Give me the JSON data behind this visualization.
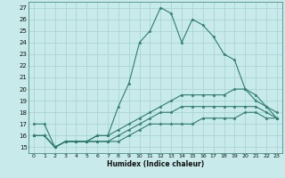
{
  "background_color": "#c8eaea",
  "grid_color": "#aad4d4",
  "line_color": "#2e7d6e",
  "xlabel": "Humidex (Indice chaleur)",
  "xlim": [
    -0.5,
    23.5
  ],
  "ylim": [
    14.5,
    27.5
  ],
  "yticks": [
    15,
    16,
    17,
    18,
    19,
    20,
    21,
    22,
    23,
    24,
    25,
    26,
    27
  ],
  "xticks": [
    0,
    1,
    2,
    3,
    4,
    5,
    6,
    7,
    8,
    9,
    10,
    11,
    12,
    13,
    14,
    15,
    16,
    17,
    18,
    19,
    20,
    21,
    22,
    23
  ],
  "series": [
    {
      "x": [
        0,
        1,
        2,
        3,
        4,
        5,
        6,
        7,
        8,
        9,
        10,
        11,
        12,
        13,
        14,
        15,
        16,
        17,
        18,
        19,
        20,
        21,
        22,
        23
      ],
      "y": [
        17,
        17,
        15,
        15.5,
        15.5,
        15.5,
        16,
        16,
        18.5,
        20.5,
        24,
        25,
        27,
        26.5,
        24,
        26,
        25.5,
        24.5,
        23,
        22.5,
        20,
        19.5,
        18.5,
        17.5
      ]
    },
    {
      "x": [
        0,
        1,
        2,
        3,
        4,
        5,
        6,
        7,
        8,
        9,
        10,
        11,
        12,
        13,
        14,
        15,
        16,
        17,
        18,
        19,
        20,
        21,
        22,
        23
      ],
      "y": [
        16,
        16,
        15,
        15.5,
        15.5,
        15.5,
        16,
        16,
        16.5,
        17,
        17.5,
        18,
        18.5,
        19,
        19.5,
        19.5,
        19.5,
        19.5,
        19.5,
        20,
        20,
        19,
        18.5,
        18
      ]
    },
    {
      "x": [
        0,
        1,
        2,
        3,
        4,
        5,
        6,
        7,
        8,
        9,
        10,
        11,
        12,
        13,
        14,
        15,
        16,
        17,
        18,
        19,
        20,
        21,
        22,
        23
      ],
      "y": [
        16,
        16,
        15,
        15.5,
        15.5,
        15.5,
        15.5,
        15.5,
        16,
        16.5,
        17,
        17.5,
        18,
        18,
        18.5,
        18.5,
        18.5,
        18.5,
        18.5,
        18.5,
        18.5,
        18.5,
        18,
        17.5
      ]
    },
    {
      "x": [
        0,
        1,
        2,
        3,
        4,
        5,
        6,
        7,
        8,
        9,
        10,
        11,
        12,
        13,
        14,
        15,
        16,
        17,
        18,
        19,
        20,
        21,
        22,
        23
      ],
      "y": [
        16,
        16,
        15,
        15.5,
        15.5,
        15.5,
        15.5,
        15.5,
        15.5,
        16,
        16.5,
        17,
        17,
        17,
        17,
        17,
        17.5,
        17.5,
        17.5,
        17.5,
        18,
        18,
        17.5,
        17.5
      ]
    }
  ]
}
